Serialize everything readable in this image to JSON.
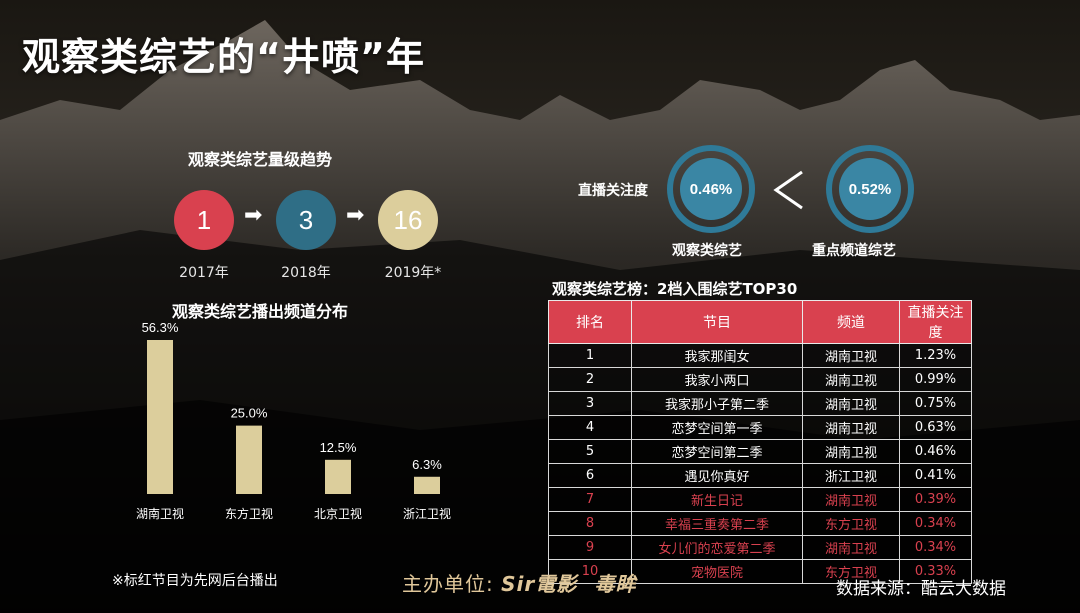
{
  "page_title": "观察类综艺的“井喷”年",
  "trend": {
    "title": "观察类综艺量级趋势",
    "items": [
      {
        "value": "1",
        "year": "2017年",
        "color": "#d9414f"
      },
      {
        "value": "3",
        "year": "2018年",
        "color": "#2f6e86"
      },
      {
        "value": "16",
        "year": "2019年*",
        "color": "#dcce9c"
      }
    ],
    "arrow": "➡"
  },
  "attention": {
    "label": "直播关注度",
    "left": {
      "value": "0.46%",
      "label": "观察类综艺"
    },
    "right": {
      "value": "0.52%",
      "label": "重点频道综艺"
    }
  },
  "chart_data": {
    "type": "bar",
    "title": "观察类综艺播出频道分布",
    "categories": [
      "湖南卫视",
      "东方卫视",
      "北京卫视",
      "浙江卫视"
    ],
    "values": [
      56.3,
      25.0,
      12.5,
      6.3
    ],
    "value_labels": [
      "56.3%",
      "25.0%",
      "12.5%",
      "6.3%"
    ],
    "ylim": [
      0,
      56.3
    ],
    "bar_color": "#dcce9c",
    "grid": false
  },
  "ranking": {
    "title": "观察类综艺榜：2档入围综艺TOP30",
    "headers": [
      "排名",
      "节目",
      "频道",
      "直播关注度"
    ],
    "rows": [
      {
        "rank": "1",
        "show": "我家那闺女",
        "channel": "湖南卫视",
        "rating": "1.23%",
        "red": false
      },
      {
        "rank": "2",
        "show": "我家小两口",
        "channel": "湖南卫视",
        "rating": "0.99%",
        "red": false
      },
      {
        "rank": "3",
        "show": "我家那小子第二季",
        "channel": "湖南卫视",
        "rating": "0.75%",
        "red": false
      },
      {
        "rank": "4",
        "show": "恋梦空间第一季",
        "channel": "湖南卫视",
        "rating": "0.63%",
        "red": false
      },
      {
        "rank": "5",
        "show": "恋梦空间第二季",
        "channel": "湖南卫视",
        "rating": "0.46%",
        "red": false
      },
      {
        "rank": "6",
        "show": "遇见你真好",
        "channel": "浙江卫视",
        "rating": "0.41%",
        "red": false
      },
      {
        "rank": "7",
        "show": "新生日记",
        "channel": "湖南卫视",
        "rating": "0.39%",
        "red": true
      },
      {
        "rank": "8",
        "show": "幸福三重奏第二季",
        "channel": "东方卫视",
        "rating": "0.34%",
        "red": true
      },
      {
        "rank": "9",
        "show": "女儿们的恋爱第二季",
        "channel": "湖南卫视",
        "rating": "0.34%",
        "red": true
      },
      {
        "rank": "10",
        "show": "宠物医院",
        "channel": "东方卫视",
        "rating": "0.33%",
        "red": true
      }
    ],
    "red_color": "#d9414f"
  },
  "footer": {
    "note": "※标红节目为先网后台播出",
    "host_prefix": "主办单位:",
    "host_brand1": "Sir電影",
    "host_brand2": "毒眸",
    "source": "数据来源：酷云大数据"
  }
}
